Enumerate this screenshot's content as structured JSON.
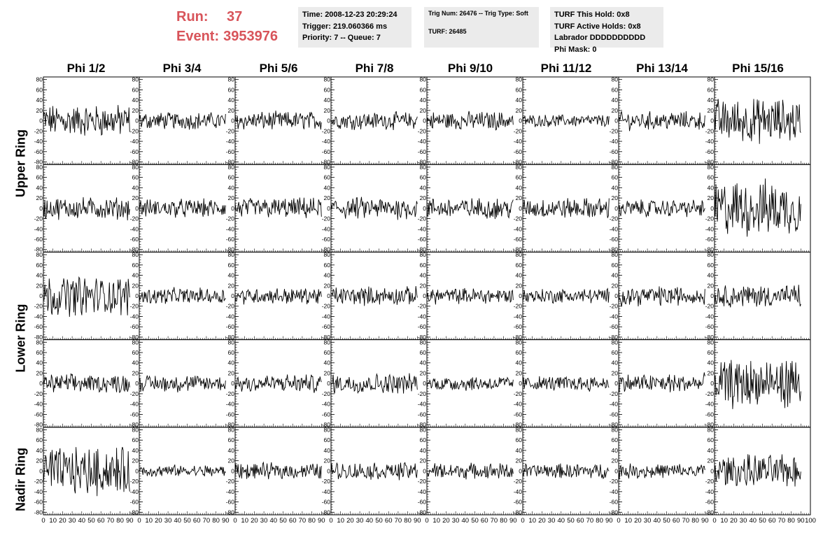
{
  "header": {
    "run_label": "Run:",
    "run_value": "37",
    "event_label": "Event:",
    "event_value": "3953976",
    "time": "Time: 2008-12-23 20:29:24",
    "trigger": "Trigger: 219.060366 ms",
    "priority": "Priority: 7 -- Queue: 7",
    "trig_num": "Trig Num: 26476 -- Trig Type: Soft",
    "turf": "TURF: 26485",
    "turf_this_hold": "TURF This Hold: 0x8",
    "turf_active_holds": "TURF Active Holds: 0x8",
    "labrador": "Labrador DDDDDDDDDD",
    "phi_mask": "Phi Mask: 0"
  },
  "colors": {
    "accent": "#d8545a",
    "info_bg": "#ebebeb",
    "trace": "#000000"
  },
  "chart_data": {
    "type": "line",
    "columns": [
      "Phi 1/2",
      "Phi 3/4",
      "Phi 5/6",
      "Phi 7/8",
      "Phi 9/10",
      "Phi 11/12",
      "Phi 13/14",
      "Phi 15/16"
    ],
    "rows": [
      "Upper Ring",
      "Upper Ring",
      "Lower Ring",
      "Lower Ring",
      "Nadir Ring"
    ],
    "ring_labels": [
      "Upper Ring",
      "Lower Ring",
      "Nadir Ring"
    ],
    "xlim": [
      0,
      100
    ],
    "ylim": [
      -85,
      85
    ],
    "x_ticks": [
      "0",
      "10",
      "20",
      "30",
      "40",
      "50",
      "60",
      "70",
      "80",
      "90",
      "100"
    ],
    "y_ticks": [
      "-80",
      "-60",
      "-40",
      "-20",
      "0",
      "20",
      "40",
      "60",
      "80"
    ],
    "n_samples": 120,
    "amplitudes": [
      [
        26,
        14,
        15,
        14,
        15,
        10,
        15,
        36
      ],
      [
        18,
        15,
        17,
        18,
        17,
        17,
        14,
        46
      ],
      [
        32,
        13,
        13,
        15,
        13,
        12,
        16,
        18
      ],
      [
        15,
        14,
        15,
        16,
        12,
        12,
        16,
        40
      ],
      [
        38,
        10,
        13,
        14,
        13,
        12,
        12,
        26
      ]
    ]
  }
}
